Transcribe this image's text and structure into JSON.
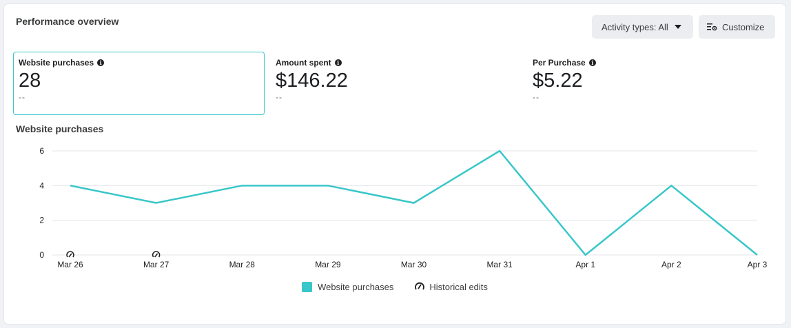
{
  "header": {
    "title": "Performance overview",
    "activity_label": "Activity types: All",
    "customize_label": "Customize"
  },
  "metrics": [
    {
      "label": "Website purchases",
      "value": "28",
      "delta": "--",
      "selected": true
    },
    {
      "label": "Amount spent",
      "value": "$146.22",
      "delta": "--",
      "selected": false
    },
    {
      "label": "Per Purchase",
      "value": "$5.22",
      "delta": "--",
      "selected": false
    }
  ],
  "chart_title": "Website purchases",
  "legend": {
    "series_label": "Website purchases",
    "edits_label": "Historical edits"
  },
  "colors": {
    "series": "#38c6c9",
    "grid": "#e4e6eb",
    "selected_border": "#38c6c9"
  },
  "chart_data": {
    "type": "line",
    "title": "Website purchases",
    "categories": [
      "Mar 26",
      "Mar 27",
      "Mar 28",
      "Mar 29",
      "Mar 30",
      "Mar 31",
      "Apr 1",
      "Apr 2",
      "Apr 3"
    ],
    "series": [
      {
        "name": "Website purchases",
        "values": [
          4,
          3,
          4,
          4,
          3,
          6,
          0,
          4,
          0
        ]
      }
    ],
    "historical_edits": [
      "Mar 26",
      "Mar 27"
    ],
    "yticks": [
      0,
      2,
      4,
      6
    ],
    "ylim": [
      0,
      6
    ],
    "grid": true,
    "legend": "bottom"
  }
}
